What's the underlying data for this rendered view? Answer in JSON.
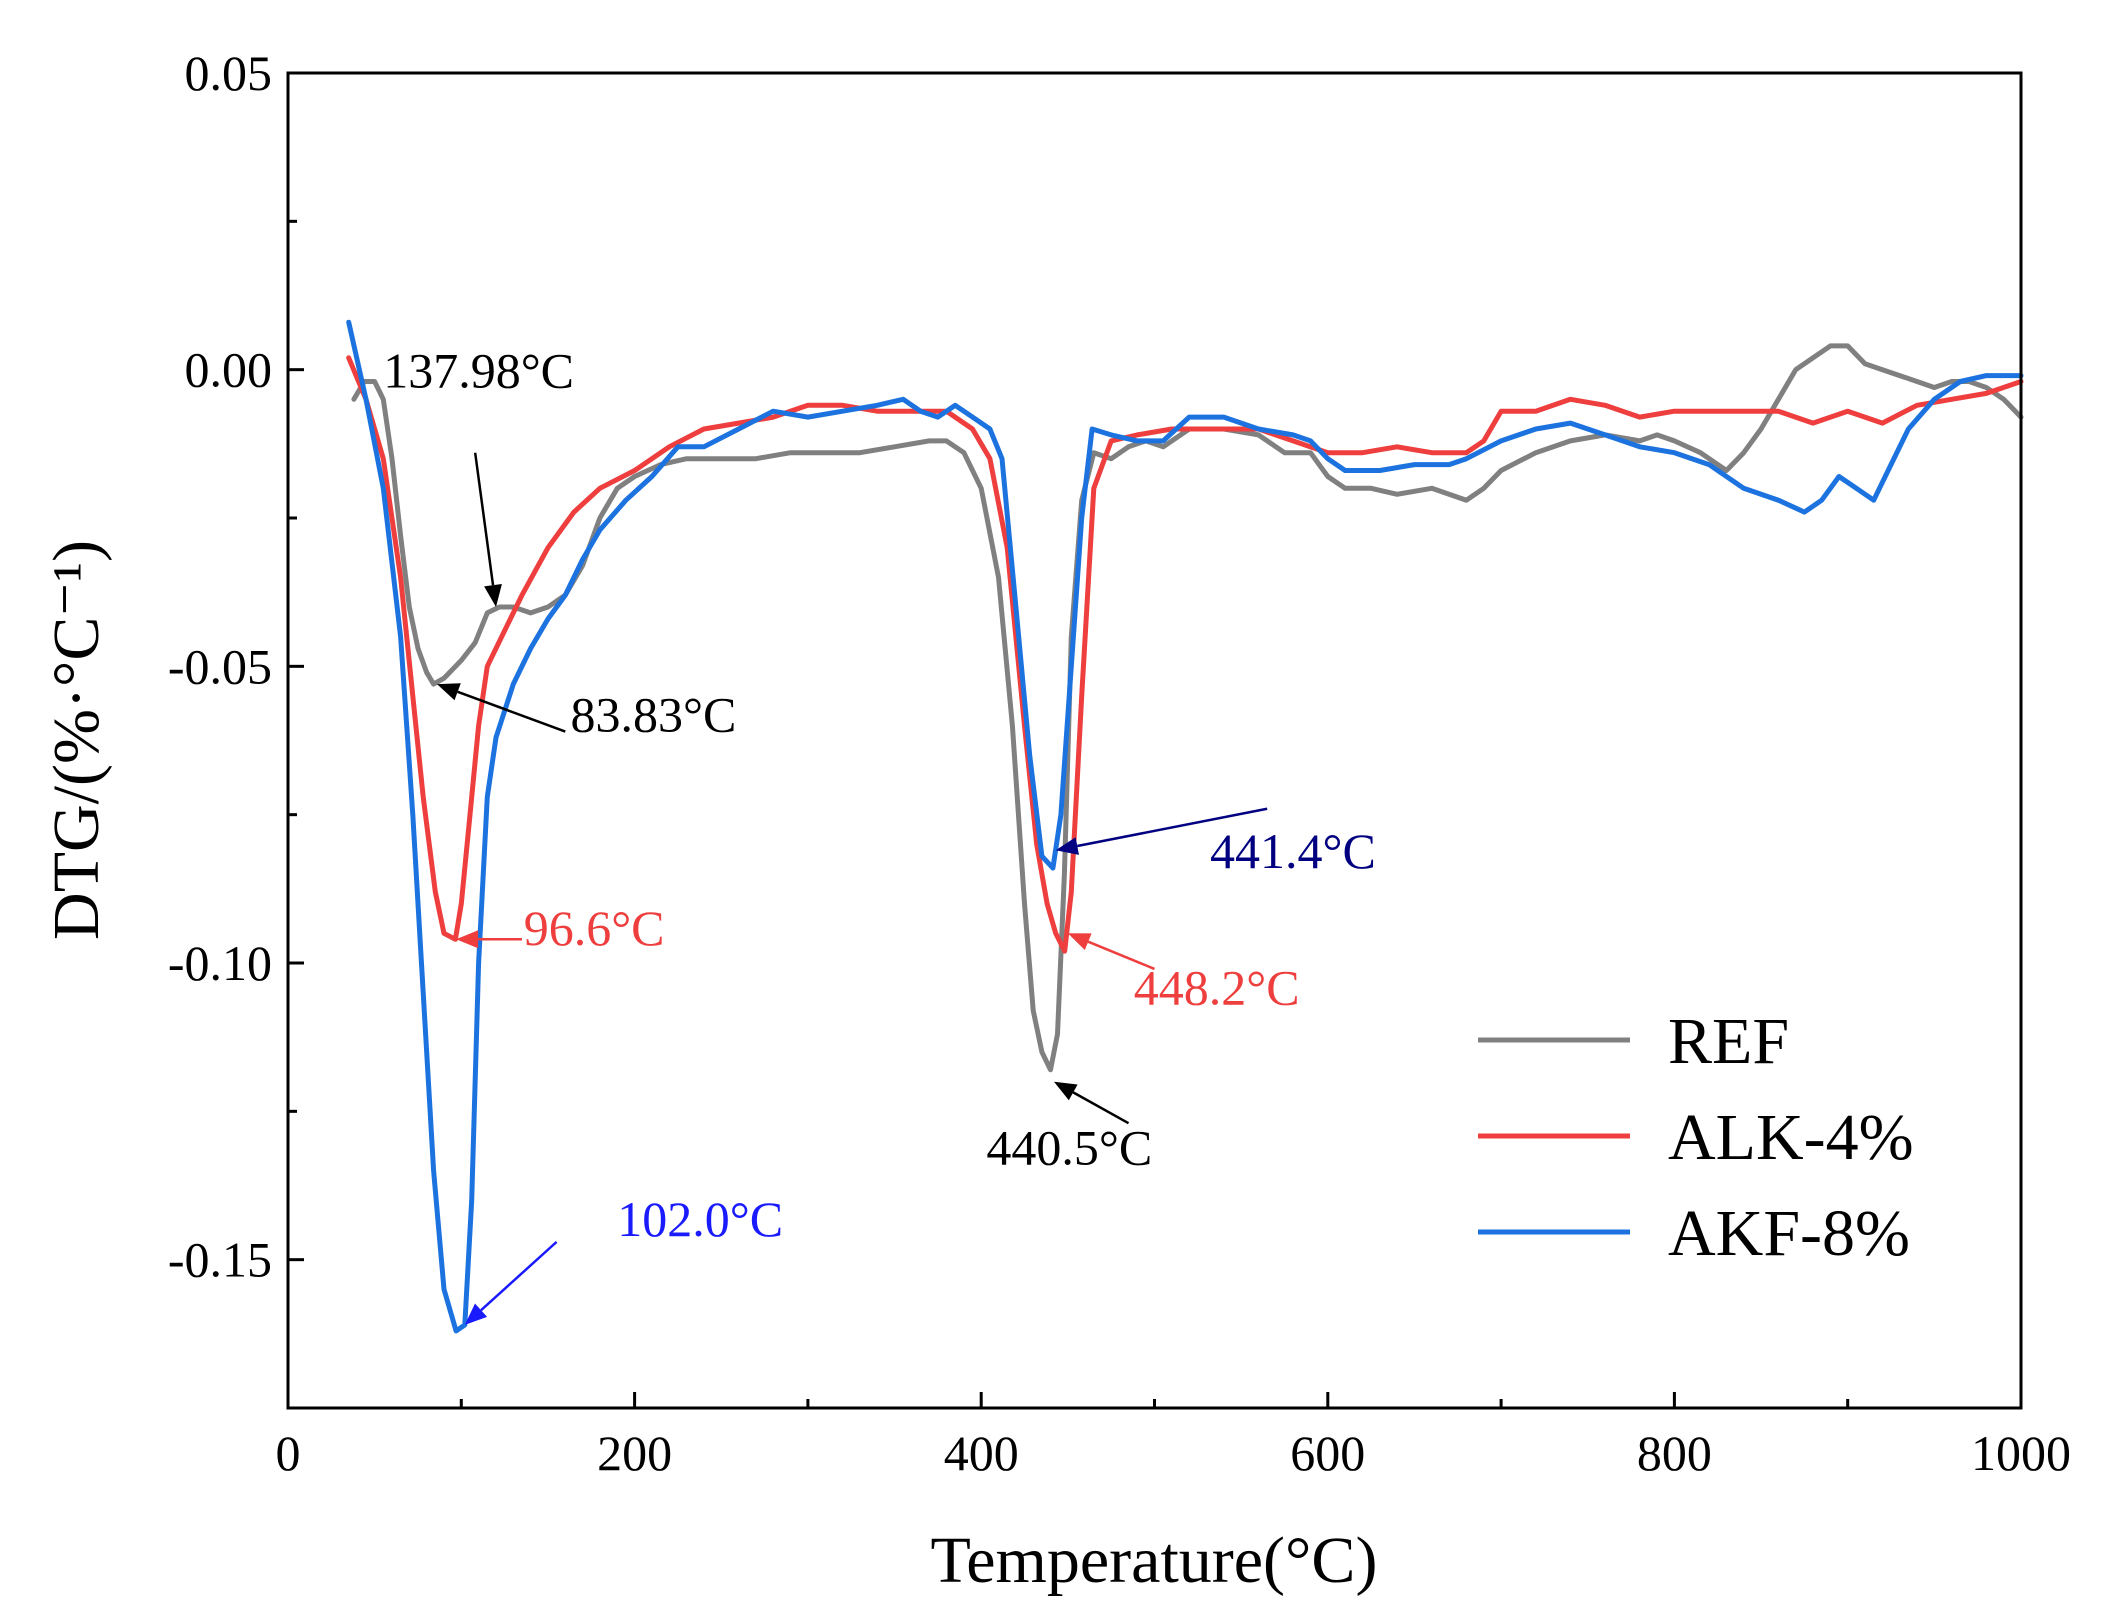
{
  "chart_data": {
    "type": "line",
    "title": "",
    "xlabel": "Temperature(°C)",
    "ylabel": "DTG/(%·°C⁻¹)",
    "xlim": [
      0,
      1000
    ],
    "ylim": [
      -0.175,
      0.05
    ],
    "xticks": [
      0,
      200,
      400,
      600,
      800,
      1000
    ],
    "xtick_labels": [
      "0",
      "200",
      "400",
      "600",
      "800",
      "1000"
    ],
    "yticks": [
      0.05,
      0.0,
      -0.05,
      -0.1,
      -0.15
    ],
    "ytick_labels": [
      "0.05",
      "0.00",
      "-0.05",
      "-0.10",
      "-0.15"
    ],
    "grid": false,
    "legend_position": "bottom-right",
    "series": [
      {
        "name": "REF",
        "color": "#808080",
        "points": [
          [
            38,
            -0.005
          ],
          [
            44,
            -0.002
          ],
          [
            50,
            -0.002
          ],
          [
            55,
            -0.005
          ],
          [
            60,
            -0.015
          ],
          [
            65,
            -0.028
          ],
          [
            70,
            -0.04
          ],
          [
            75,
            -0.047
          ],
          [
            80,
            -0.051
          ],
          [
            84,
            -0.053
          ],
          [
            90,
            -0.052
          ],
          [
            100,
            -0.049
          ],
          [
            108,
            -0.046
          ],
          [
            115,
            -0.041
          ],
          [
            122,
            -0.04
          ],
          [
            130,
            -0.04
          ],
          [
            140,
            -0.041
          ],
          [
            150,
            -0.04
          ],
          [
            160,
            -0.038
          ],
          [
            170,
            -0.033
          ],
          [
            180,
            -0.025
          ],
          [
            190,
            -0.02
          ],
          [
            200,
            -0.018
          ],
          [
            215,
            -0.016
          ],
          [
            230,
            -0.015
          ],
          [
            250,
            -0.015
          ],
          [
            270,
            -0.015
          ],
          [
            290,
            -0.014
          ],
          [
            310,
            -0.014
          ],
          [
            330,
            -0.014
          ],
          [
            350,
            -0.013
          ],
          [
            370,
            -0.012
          ],
          [
            380,
            -0.012
          ],
          [
            390,
            -0.014
          ],
          [
            400,
            -0.02
          ],
          [
            410,
            -0.035
          ],
          [
            418,
            -0.06
          ],
          [
            425,
            -0.09
          ],
          [
            430,
            -0.108
          ],
          [
            435,
            -0.115
          ],
          [
            440,
            -0.118
          ],
          [
            444,
            -0.112
          ],
          [
            448,
            -0.085
          ],
          [
            452,
            -0.045
          ],
          [
            458,
            -0.022
          ],
          [
            465,
            -0.014
          ],
          [
            475,
            -0.015
          ],
          [
            485,
            -0.013
          ],
          [
            495,
            -0.012
          ],
          [
            505,
            -0.013
          ],
          [
            520,
            -0.01
          ],
          [
            540,
            -0.01
          ],
          [
            560,
            -0.011
          ],
          [
            575,
            -0.014
          ],
          [
            590,
            -0.014
          ],
          [
            600,
            -0.018
          ],
          [
            610,
            -0.02
          ],
          [
            625,
            -0.02
          ],
          [
            640,
            -0.021
          ],
          [
            660,
            -0.02
          ],
          [
            680,
            -0.022
          ],
          [
            690,
            -0.02
          ],
          [
            700,
            -0.017
          ],
          [
            720,
            -0.014
          ],
          [
            740,
            -0.012
          ],
          [
            760,
            -0.011
          ],
          [
            780,
            -0.012
          ],
          [
            790,
            -0.011
          ],
          [
            800,
            -0.012
          ],
          [
            815,
            -0.014
          ],
          [
            830,
            -0.017
          ],
          [
            840,
            -0.014
          ],
          [
            850,
            -0.01
          ],
          [
            860,
            -0.005
          ],
          [
            870,
            0.0
          ],
          [
            880,
            0.002
          ],
          [
            890,
            0.004
          ],
          [
            900,
            0.004
          ],
          [
            910,
            0.001
          ],
          [
            920,
            0.0
          ],
          [
            930,
            -0.001
          ],
          [
            940,
            -0.002
          ],
          [
            950,
            -0.003
          ],
          [
            960,
            -0.002
          ],
          [
            970,
            -0.002
          ],
          [
            980,
            -0.003
          ],
          [
            990,
            -0.005
          ],
          [
            1000,
            -0.008
          ]
        ]
      },
      {
        "name": "ALK-4%",
        "color": "#ee3e3e",
        "points": [
          [
            35,
            0.002
          ],
          [
            45,
            -0.005
          ],
          [
            55,
            -0.015
          ],
          [
            65,
            -0.035
          ],
          [
            72,
            -0.055
          ],
          [
            78,
            -0.072
          ],
          [
            85,
            -0.088
          ],
          [
            90,
            -0.095
          ],
          [
            96.6,
            -0.096
          ],
          [
            100,
            -0.09
          ],
          [
            105,
            -0.075
          ],
          [
            110,
            -0.06
          ],
          [
            115,
            -0.05
          ],
          [
            125,
            -0.044
          ],
          [
            135,
            -0.038
          ],
          [
            150,
            -0.03
          ],
          [
            165,
            -0.024
          ],
          [
            180,
            -0.02
          ],
          [
            200,
            -0.017
          ],
          [
            220,
            -0.013
          ],
          [
            240,
            -0.01
          ],
          [
            260,
            -0.009
          ],
          [
            280,
            -0.008
          ],
          [
            300,
            -0.006
          ],
          [
            320,
            -0.006
          ],
          [
            340,
            -0.007
          ],
          [
            360,
            -0.007
          ],
          [
            380,
            -0.007
          ],
          [
            395,
            -0.01
          ],
          [
            405,
            -0.015
          ],
          [
            415,
            -0.03
          ],
          [
            425,
            -0.06
          ],
          [
            432,
            -0.08
          ],
          [
            438,
            -0.09
          ],
          [
            443,
            -0.095
          ],
          [
            448.2,
            -0.098
          ],
          [
            452,
            -0.088
          ],
          [
            458,
            -0.055
          ],
          [
            465,
            -0.02
          ],
          [
            475,
            -0.012
          ],
          [
            490,
            -0.011
          ],
          [
            510,
            -0.01
          ],
          [
            530,
            -0.01
          ],
          [
            560,
            -0.01
          ],
          [
            580,
            -0.012
          ],
          [
            600,
            -0.014
          ],
          [
            620,
            -0.014
          ],
          [
            640,
            -0.013
          ],
          [
            660,
            -0.014
          ],
          [
            680,
            -0.014
          ],
          [
            690,
            -0.012
          ],
          [
            700,
            -0.007
          ],
          [
            720,
            -0.007
          ],
          [
            740,
            -0.005
          ],
          [
            760,
            -0.006
          ],
          [
            780,
            -0.008
          ],
          [
            800,
            -0.007
          ],
          [
            820,
            -0.007
          ],
          [
            840,
            -0.007
          ],
          [
            860,
            -0.007
          ],
          [
            880,
            -0.009
          ],
          [
            900,
            -0.007
          ],
          [
            920,
            -0.009
          ],
          [
            940,
            -0.006
          ],
          [
            960,
            -0.005
          ],
          [
            980,
            -0.004
          ],
          [
            1000,
            -0.002
          ]
        ]
      },
      {
        "name": "AKF-8%",
        "color": "#1c73e0",
        "points": [
          [
            35,
            0.008
          ],
          [
            45,
            -0.005
          ],
          [
            55,
            -0.02
          ],
          [
            65,
            -0.045
          ],
          [
            72,
            -0.075
          ],
          [
            78,
            -0.105
          ],
          [
            84,
            -0.135
          ],
          [
            90,
            -0.155
          ],
          [
            97,
            -0.162
          ],
          [
            102,
            -0.161
          ],
          [
            106,
            -0.14
          ],
          [
            110,
            -0.1
          ],
          [
            115,
            -0.072
          ],
          [
            120,
            -0.062
          ],
          [
            130,
            -0.053
          ],
          [
            140,
            -0.047
          ],
          [
            150,
            -0.042
          ],
          [
            160,
            -0.038
          ],
          [
            170,
            -0.032
          ],
          [
            180,
            -0.027
          ],
          [
            195,
            -0.022
          ],
          [
            210,
            -0.018
          ],
          [
            225,
            -0.013
          ],
          [
            240,
            -0.013
          ],
          [
            260,
            -0.01
          ],
          [
            280,
            -0.007
          ],
          [
            300,
            -0.008
          ],
          [
            320,
            -0.007
          ],
          [
            340,
            -0.006
          ],
          [
            355,
            -0.005
          ],
          [
            365,
            -0.007
          ],
          [
            375,
            -0.008
          ],
          [
            385,
            -0.006
          ],
          [
            395,
            -0.008
          ],
          [
            405,
            -0.01
          ],
          [
            412,
            -0.015
          ],
          [
            420,
            -0.04
          ],
          [
            428,
            -0.065
          ],
          [
            435,
            -0.082
          ],
          [
            441.4,
            -0.084
          ],
          [
            446,
            -0.075
          ],
          [
            452,
            -0.05
          ],
          [
            458,
            -0.025
          ],
          [
            464,
            -0.01
          ],
          [
            475,
            -0.011
          ],
          [
            490,
            -0.012
          ],
          [
            505,
            -0.012
          ],
          [
            520,
            -0.008
          ],
          [
            540,
            -0.008
          ],
          [
            560,
            -0.01
          ],
          [
            580,
            -0.011
          ],
          [
            590,
            -0.012
          ],
          [
            600,
            -0.015
          ],
          [
            610,
            -0.017
          ],
          [
            630,
            -0.017
          ],
          [
            650,
            -0.016
          ],
          [
            670,
            -0.016
          ],
          [
            680,
            -0.015
          ],
          [
            700,
            -0.012
          ],
          [
            720,
            -0.01
          ],
          [
            740,
            -0.009
          ],
          [
            760,
            -0.011
          ],
          [
            780,
            -0.013
          ],
          [
            800,
            -0.014
          ],
          [
            820,
            -0.016
          ],
          [
            840,
            -0.02
          ],
          [
            860,
            -0.022
          ],
          [
            875,
            -0.024
          ],
          [
            885,
            -0.022
          ],
          [
            895,
            -0.018
          ],
          [
            905,
            -0.02
          ],
          [
            915,
            -0.022
          ],
          [
            925,
            -0.016
          ],
          [
            935,
            -0.01
          ],
          [
            950,
            -0.005
          ],
          [
            965,
            -0.002
          ],
          [
            980,
            -0.001
          ],
          [
            1000,
            -0.001
          ]
        ]
      }
    ],
    "annotations": [
      {
        "text": "137.98°C",
        "color": "#000000",
        "target": [
          120,
          -0.04
        ],
        "label_at": [
          110,
          -0.003
        ],
        "anchor": "middle",
        "arrow_from": [
          108,
          -0.014
        ]
      },
      {
        "text": "83.83°C",
        "color": "#000000",
        "target": [
          86,
          -0.053
        ],
        "label_at": [
          163,
          -0.061
        ],
        "anchor": "start",
        "arrow_from": [
          160,
          -0.061
        ]
      },
      {
        "text": "96.6°C",
        "color": "#ee3e3e",
        "target": [
          97,
          -0.096
        ],
        "label_at": [
          136,
          -0.097
        ],
        "anchor": "start",
        "arrow_from": [
          135,
          -0.096
        ]
      },
      {
        "text": "102.0°C",
        "color": "#1a1aff",
        "target": [
          102,
          -0.161
        ],
        "label_at": [
          190,
          -0.146
        ],
        "anchor": "start",
        "arrow_from": [
          155,
          -0.147
        ]
      },
      {
        "text": "441.4°C",
        "color": "#000080",
        "target": [
          443,
          -0.081
        ],
        "label_at": [
          532,
          -0.084
        ],
        "anchor": "start",
        "arrow_from": [
          565,
          -0.074
        ]
      },
      {
        "text": "448.2°C",
        "color": "#ee3e3e",
        "target": [
          450,
          -0.095
        ],
        "label_at": [
          488,
          -0.107
        ],
        "anchor": "start",
        "arrow_from": [
          500,
          -0.101
        ]
      },
      {
        "text": "440.5°C",
        "color": "#000000",
        "target": [
          442,
          -0.12
        ],
        "label_at": [
          403,
          -0.134
        ],
        "anchor": "start",
        "arrow_from": [
          485,
          -0.127
        ]
      }
    ]
  }
}
